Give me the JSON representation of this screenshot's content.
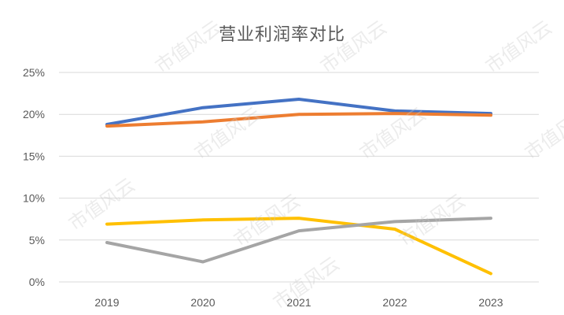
{
  "chart_data": {
    "type": "line",
    "title": "营业利润率对比",
    "xlabel": "",
    "ylabel": "",
    "categories": [
      "2019",
      "2020",
      "2021",
      "2022",
      "2023"
    ],
    "ylim": [
      0,
      25
    ],
    "yticks": [
      0,
      5,
      10,
      15,
      20,
      25
    ],
    "ytick_labels": [
      "0%",
      "5%",
      "10%",
      "15%",
      "20%",
      "25%"
    ],
    "grid": true,
    "legend": "none",
    "series": [
      {
        "color": "#4472C4",
        "values": [
          18.8,
          20.8,
          21.8,
          20.4,
          20.1
        ]
      },
      {
        "color": "#ED7D31",
        "values": [
          18.6,
          19.1,
          20.0,
          20.1,
          19.9
        ]
      },
      {
        "color": "#FFC000",
        "values": [
          6.9,
          7.4,
          7.6,
          6.3,
          1.0
        ]
      },
      {
        "color": "#A5A5A5",
        "values": [
          4.7,
          2.4,
          6.1,
          7.2,
          7.6
        ]
      }
    ]
  },
  "watermark": "市值风云"
}
